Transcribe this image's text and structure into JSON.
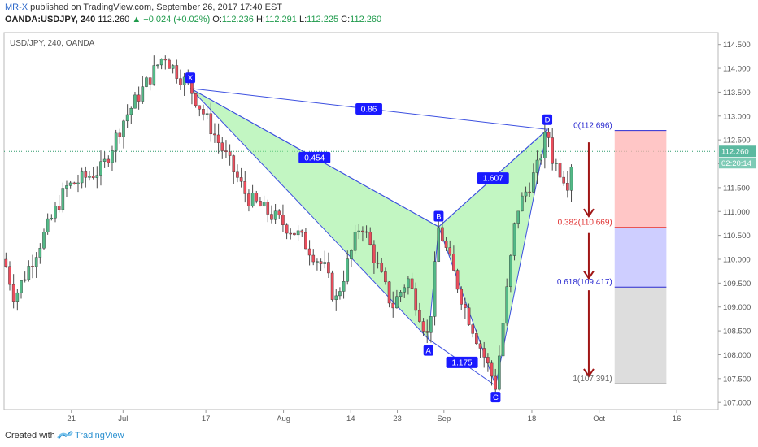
{
  "header": {
    "author": "MR-X",
    "published": "published on TradingView.com, September 26, 2017 17:40 EST",
    "symbol": "OANDA:USDJPY, 240",
    "last": "112.260",
    "change": "▲ +0.024 (+0.02%)",
    "o_label": "O:",
    "o": "112.236",
    "h_label": "H:",
    "h": "112.291",
    "l_label": "L:",
    "l": "112.225",
    "c_label": "C:",
    "c": "112.260"
  },
  "chart_data": {
    "type": "candlestick",
    "title": "USD/JPY, 240, OANDA",
    "ylim": [
      106.85,
      114.75
    ],
    "y_ticks": [
      "107.000",
      "107.500",
      "108.000",
      "108.500",
      "109.000",
      "109.500",
      "110.000",
      "110.500",
      "111.000",
      "111.500",
      "112.000",
      "112.500",
      "113.000",
      "113.500",
      "114.000",
      "114.500"
    ],
    "x_ticks": [
      "21",
      "Jul",
      "17",
      "Aug",
      "14",
      "23",
      "Sep",
      "18",
      "Oct",
      "16"
    ],
    "last_price": 112.26,
    "last_price_label": "112.260",
    "countdown_label": "02:20:14",
    "pattern": {
      "points": [
        {
          "label": "X",
          "date": "2017-07-14",
          "price": 113.58
        },
        {
          "label": "A",
          "date": "2017-08-29",
          "price": 108.33
        },
        {
          "label": "B",
          "date": "2017-08-31",
          "price": 110.68
        },
        {
          "label": "C",
          "date": "2017-09-11",
          "price": 107.35
        },
        {
          "label": "D",
          "date": "2017-09-21",
          "price": 112.72
        }
      ],
      "ratios": [
        {
          "label": "0.454",
          "between": "XA-AB"
        },
        {
          "label": "0.86",
          "between": "X-D"
        },
        {
          "label": "1.175",
          "between": "A-C"
        },
        {
          "label": "1.607",
          "between": "BC-CD"
        }
      ],
      "fill_color": "#90ee90",
      "line_color": "#3c50e0"
    },
    "fib_levels": [
      {
        "label": "0(112.696)",
        "price": 112.696,
        "color": "#2a2ad0"
      },
      {
        "label": "0.382(110.669)",
        "price": 110.669,
        "color": "#e03030"
      },
      {
        "label": "0.618(109.417)",
        "price": 109.417,
        "color": "#2a2ad0"
      },
      {
        "label": "1(107.391)",
        "price": 107.391,
        "color": "#666666"
      }
    ],
    "candle_up_color": "#53b987",
    "candle_down_color": "#eb4d5c",
    "wick_color": "#4a4a4a"
  },
  "footer": {
    "created": "Created with",
    "brand": "TradingView"
  }
}
